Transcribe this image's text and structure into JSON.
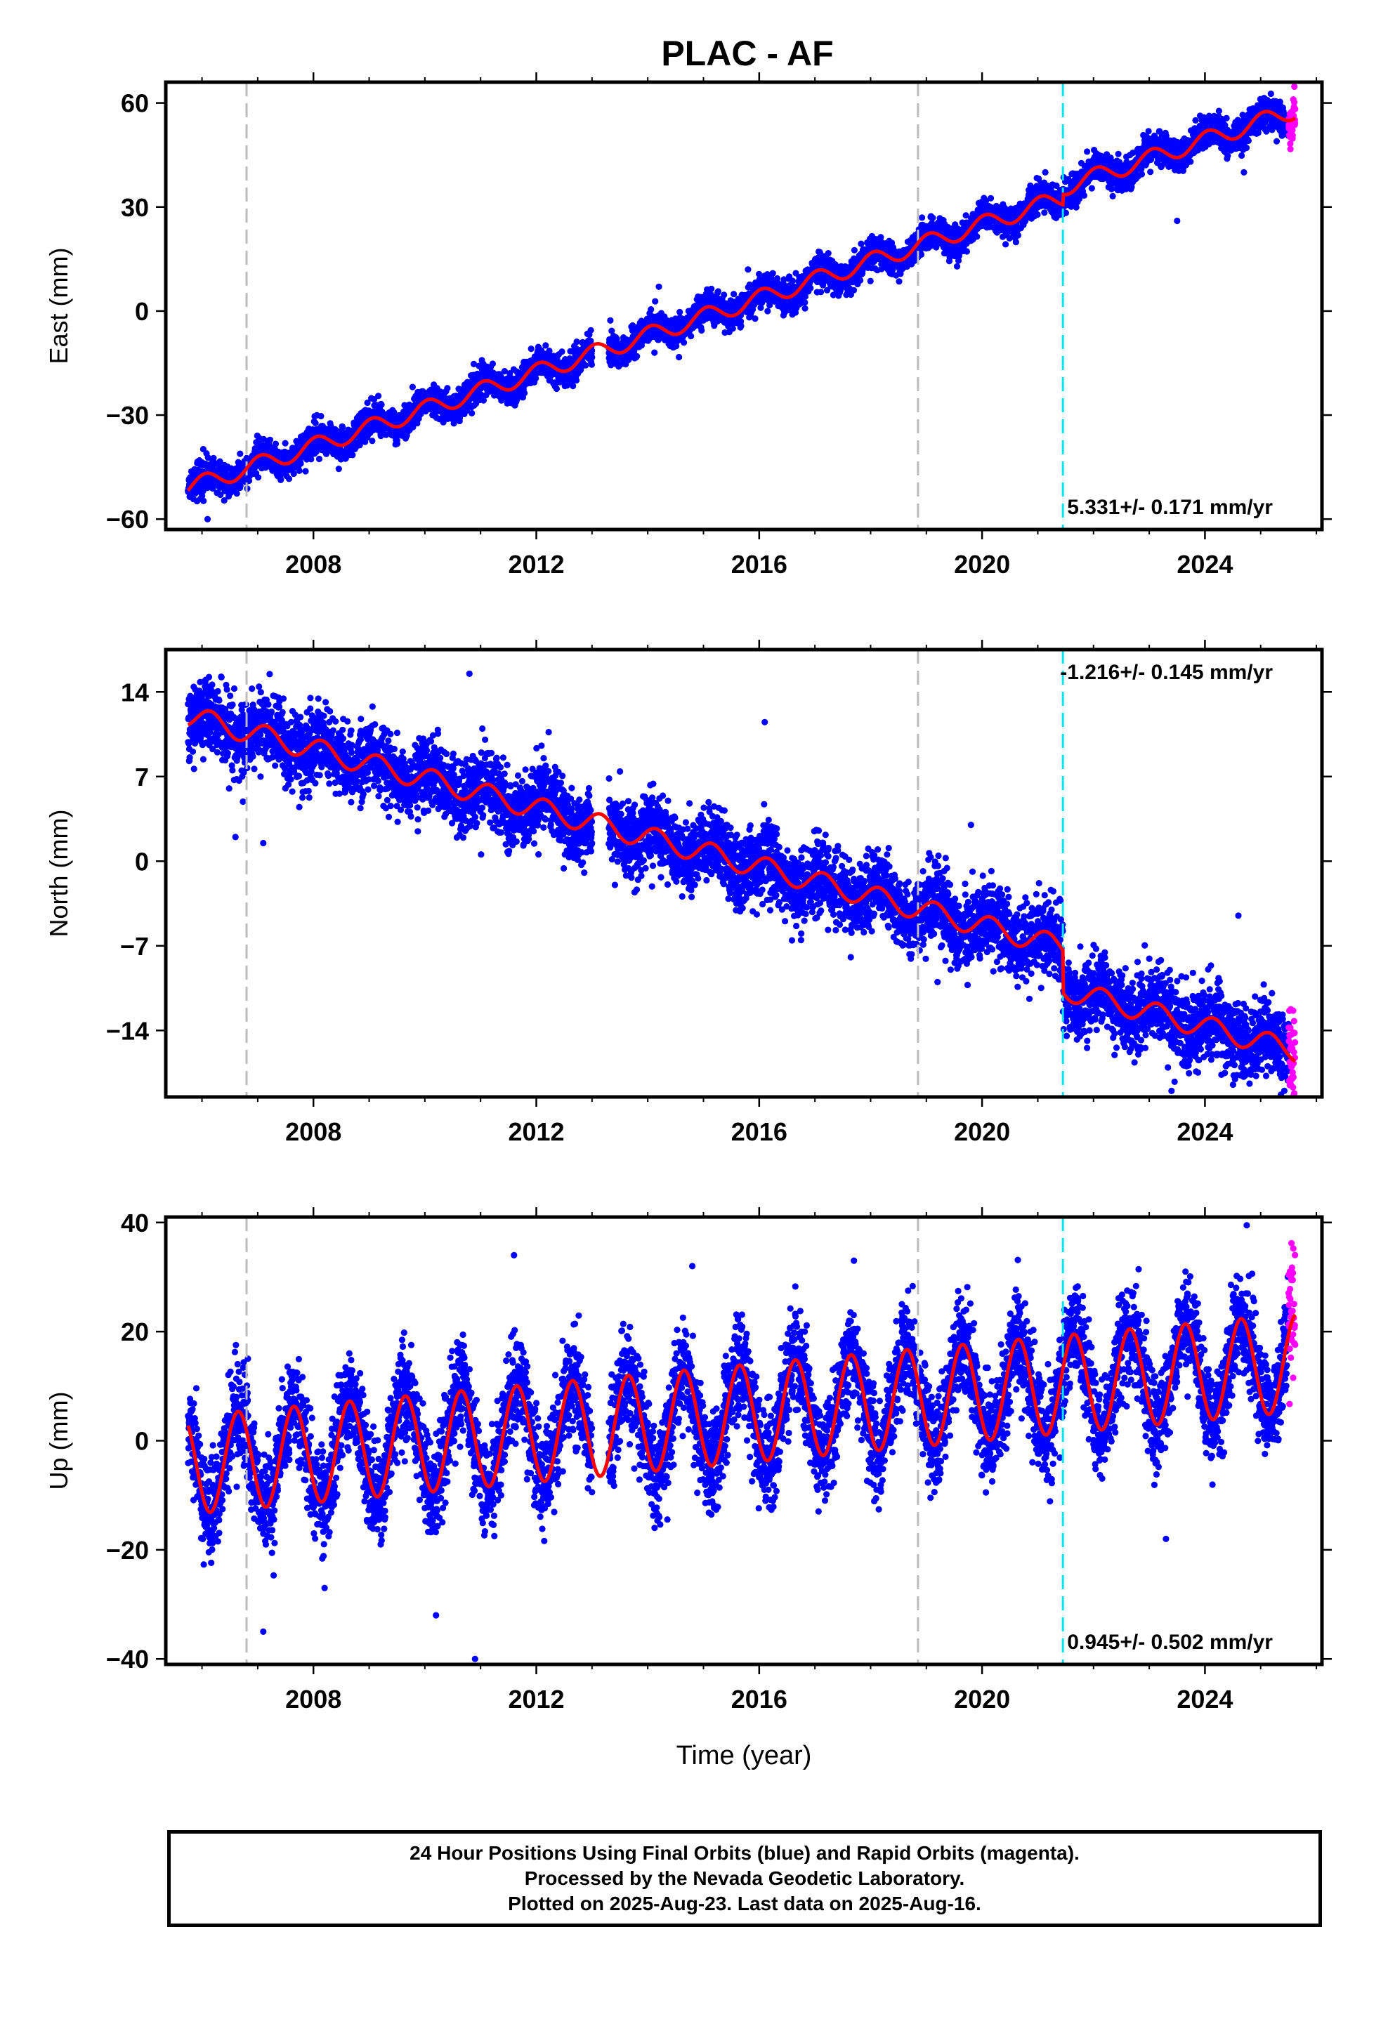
{
  "title": "PLAC - AF",
  "footer": {
    "line1": "24 Hour Positions Using Final Orbits (blue) and Rapid Orbits (magenta).",
    "line2": "Processed by the Nevada Geodetic Laboratory.",
    "line3": "Plotted on 2025-Aug-23. Last data on 2025-Aug-16."
  },
  "colors": {
    "final_orbits": "#0000ff",
    "rapid_orbits": "#ff00ff",
    "model": "#ff0000",
    "equipment_change": "#bbbbbb",
    "earthquake": "#00e5ee"
  },
  "chart_data": [
    {
      "type": "scatter",
      "panel": "east",
      "title": "PLAC - AF",
      "xlabel": "",
      "ylabel": "East (mm)",
      "xlim": [
        2005.35,
        2026.1
      ],
      "ylim": [
        -63,
        66
      ],
      "xticks": [
        2008,
        2012,
        2016,
        2020,
        2024
      ],
      "xtick_labels": [
        "2008",
        "2012",
        "2016",
        "2020",
        "2024"
      ],
      "yticks": [
        -60,
        -30,
        0,
        30,
        60
      ],
      "ytick_labels": [
        "-60",
        "-30",
        "0",
        "30",
        "60"
      ],
      "rate_label": "5.331+/- 0.171 mm/yr",
      "rate_position": "bottom-right",
      "data_start": 2005.75,
      "data_end": 2025.62,
      "rapid_start": 2025.5,
      "gap": [
        2013.0,
        2013.3
      ],
      "trend": {
        "t0": 2005.75,
        "y0": -51,
        "rate": 5.331
      },
      "seasonal": {
        "annual_amplitude": 2.5,
        "phase": 0.2
      },
      "offsets": [
        {
          "t": 2021.45,
          "dy": 3.0
        }
      ],
      "scatter_sigma": 2.2,
      "outliers": [
        [
          2006.1,
          -60
        ],
        [
          2014.2,
          7
        ],
        [
          2015.8,
          12
        ],
        [
          2023.5,
          26
        ],
        [
          2024.7,
          40
        ],
        [
          2016.9,
          8
        ]
      ],
      "equipment_changes": [
        2006.8,
        2018.85
      ],
      "earthquakes": [
        2021.45
      ]
    },
    {
      "type": "scatter",
      "panel": "north",
      "xlabel": "",
      "ylabel": "North (mm)",
      "xlim": [
        2005.35,
        2026.1
      ],
      "ylim": [
        -19.5,
        17.5
      ],
      "xticks": [
        2008,
        2012,
        2016,
        2020,
        2024
      ],
      "xtick_labels": [
        "2008",
        "2012",
        "2016",
        "2020",
        "2024"
      ],
      "yticks": [
        -14,
        -7,
        0,
        7,
        14
      ],
      "ytick_labels": [
        "-14",
        "-7",
        "0",
        "7",
        "14"
      ],
      "rate_label": "-1.216+/- 0.145 mm/yr",
      "rate_position": "top-right",
      "data_start": 2005.75,
      "data_end": 2025.62,
      "rapid_start": 2025.5,
      "gap": [
        2013.0,
        2013.3
      ],
      "trend": {
        "t0": 2005.75,
        "y0": 12,
        "rate": -1.216
      },
      "seasonal": {
        "annual_amplitude": 0.9,
        "phase": 0.1
      },
      "offsets": [
        {
          "t": 2021.45,
          "dy": -3.5
        }
      ],
      "scatter_sigma": 1.5,
      "outliers": [
        [
          2006.6,
          2
        ],
        [
          2007.1,
          1.5
        ],
        [
          2010.8,
          15.5
        ],
        [
          2016.1,
          11.5
        ],
        [
          2019.8,
          3
        ],
        [
          2024.6,
          -4.5
        ],
        [
          2019.2,
          -10
        ],
        [
          2023.4,
          -19
        ]
      ],
      "equipment_changes": [
        2006.8,
        2018.85
      ],
      "earthquakes": [
        2021.45
      ]
    },
    {
      "type": "scatter",
      "panel": "up",
      "xlabel": "Time (year)",
      "ylabel": "Up (mm)",
      "xlim": [
        2005.35,
        2026.1
      ],
      "ylim": [
        -41,
        41
      ],
      "xticks": [
        2008,
        2012,
        2016,
        2020,
        2024
      ],
      "xtick_labels": [
        "2008",
        "2012",
        "2016",
        "2020",
        "2024"
      ],
      "yticks": [
        -40,
        -20,
        0,
        20,
        40
      ],
      "ytick_labels": [
        "-40",
        "-20",
        "0",
        "20",
        "40"
      ],
      "rate_label": "0.945+/- 0.502 mm/yr",
      "rate_position": "bottom-right",
      "data_start": 2005.75,
      "data_end": 2025.62,
      "rapid_start": 2025.5,
      "gap": [
        2013.0,
        2013.3
      ],
      "trend": {
        "t0": 2005.75,
        "y0": -4.5,
        "rate": 0.945
      },
      "seasonal": {
        "annual_amplitude": 9.0,
        "phase": 0.6
      },
      "offsets": [],
      "scatter_sigma": 4.5,
      "outliers": [
        [
          2007.1,
          -35
        ],
        [
          2008.2,
          -27
        ],
        [
          2010.2,
          -32
        ],
        [
          2010.9,
          -40
        ],
        [
          2011.6,
          34
        ],
        [
          2014.8,
          32
        ],
        [
          2017.7,
          33
        ],
        [
          2024.75,
          39.5
        ],
        [
          2023.3,
          -18
        ]
      ],
      "equipment_changes": [
        2006.8,
        2018.85
      ],
      "earthquakes": [
        2021.45
      ]
    }
  ]
}
